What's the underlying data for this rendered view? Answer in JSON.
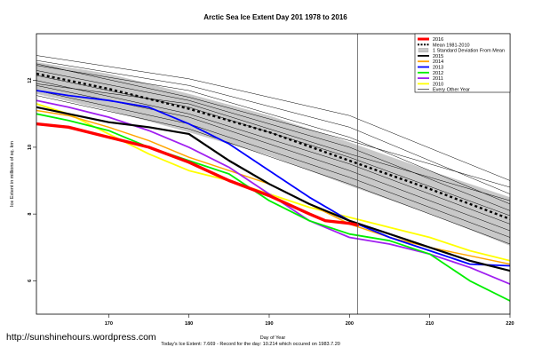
{
  "chart_data": {
    "type": "line",
    "title": "Arctic Sea Ice Extent Day 201 1978 to 2016",
    "xlabel": "Day of Year",
    "ylabel": "Ice Extent in millions of sq. km",
    "xlim": [
      161,
      220
    ],
    "ylim": [
      5.0,
      13.4
    ],
    "x_ticks": [
      170,
      180,
      190,
      200,
      210,
      220
    ],
    "y_ticks": [
      6,
      8,
      10,
      12
    ],
    "vline_x": 201,
    "grid": false,
    "legend_position": "top-right",
    "footer": "Today's Ice Extent: 7.669 - Record for the day: 10.214 which occured on 1983.7.20",
    "credit": "http://sunshinehours.wordpress.com",
    "legend": [
      {
        "label": "2016",
        "color": "#ff0000",
        "style": "thick"
      },
      {
        "label": "Mean 1981-2010",
        "color": "#000000",
        "style": "dashed"
      },
      {
        "label": "1 Standard Deviation From Mean",
        "color": "#c8c8c8",
        "style": "band"
      },
      {
        "label": "2015",
        "color": "#000000",
        "style": "line"
      },
      {
        "label": "2014",
        "color": "#ffa500",
        "style": "line"
      },
      {
        "label": "2013",
        "color": "#0000ff",
        "style": "line"
      },
      {
        "label": "2012",
        "color": "#00ee00",
        "style": "line"
      },
      {
        "label": "2011",
        "color": "#a020f0",
        "style": "line"
      },
      {
        "label": "2010",
        "color": "#ffff00",
        "style": "line"
      },
      {
        "label": "Every Other Year",
        "color": "#000000",
        "style": "thin"
      }
    ],
    "mean": {
      "x": [
        161,
        170,
        180,
        190,
        200,
        210,
        220
      ],
      "y": [
        12.2,
        11.75,
        11.15,
        10.45,
        9.6,
        8.75,
        7.85
      ]
    },
    "std_band": {
      "x": [
        161,
        170,
        180,
        190,
        200,
        210,
        220
      ],
      "upper": [
        12.55,
        12.2,
        11.6,
        10.95,
        10.15,
        9.3,
        8.5
      ],
      "lower": [
        11.6,
        11.1,
        10.45,
        9.75,
        8.85,
        8.0,
        7.05
      ]
    },
    "series": [
      {
        "name": "2016",
        "color": "#ff0000",
        "width": 3.4,
        "x": [
          161,
          165,
          170,
          175,
          180,
          185,
          190,
          195,
          197,
          200,
          201
        ],
        "y": [
          10.7,
          10.6,
          10.3,
          10.0,
          9.55,
          9.0,
          8.55,
          8.0,
          7.8,
          7.72,
          7.669
        ]
      },
      {
        "name": "2015",
        "color": "#000000",
        "width": 2.2,
        "x": [
          161,
          165,
          170,
          175,
          180,
          185,
          190,
          195,
          200,
          205,
          210,
          215,
          220
        ],
        "y": [
          11.2,
          11.0,
          10.75,
          10.6,
          10.4,
          9.6,
          8.9,
          8.3,
          7.8,
          7.4,
          7.0,
          6.6,
          6.3
        ]
      },
      {
        "name": "2014",
        "color": "#ffa500",
        "width": 1.5,
        "x": [
          161,
          165,
          170,
          175,
          180,
          185,
          190,
          195,
          200,
          205,
          210,
          215,
          220
        ],
        "y": [
          11.1,
          10.95,
          10.6,
          10.2,
          9.7,
          9.3,
          8.9,
          8.3,
          7.7,
          7.3,
          7.0,
          6.75,
          6.5
        ]
      },
      {
        "name": "2013",
        "color": "#0000ff",
        "width": 1.8,
        "x": [
          161,
          165,
          170,
          175,
          180,
          185,
          190,
          195,
          200,
          205,
          210,
          215,
          220
        ],
        "y": [
          11.7,
          11.55,
          11.4,
          11.2,
          10.7,
          10.1,
          9.3,
          8.5,
          7.8,
          7.3,
          6.9,
          6.5,
          6.45
        ]
      },
      {
        "name": "2012",
        "color": "#00ee00",
        "width": 1.8,
        "x": [
          161,
          165,
          170,
          175,
          180,
          185,
          190,
          195,
          200,
          205,
          210,
          215,
          220
        ],
        "y": [
          11.0,
          10.8,
          10.5,
          10.0,
          9.6,
          9.2,
          8.4,
          7.8,
          7.4,
          7.2,
          6.8,
          6.0,
          5.4
        ]
      },
      {
        "name": "2011",
        "color": "#a020f0",
        "width": 1.8,
        "x": [
          161,
          165,
          170,
          175,
          180,
          185,
          190,
          195,
          200,
          205,
          210,
          215,
          220
        ],
        "y": [
          11.4,
          11.2,
          10.9,
          10.5,
          10.0,
          9.4,
          8.6,
          7.8,
          7.3,
          7.1,
          6.8,
          6.4,
          5.9
        ]
      },
      {
        "name": "2010",
        "color": "#ffff00",
        "width": 1.8,
        "x": [
          161,
          165,
          170,
          175,
          180,
          185,
          190,
          195,
          200,
          205,
          210,
          215,
          220
        ],
        "y": [
          11.3,
          11.0,
          10.4,
          9.8,
          9.3,
          9.0,
          8.6,
          8.2,
          7.9,
          7.6,
          7.3,
          6.9,
          6.6
        ]
      },
      {
        "name": "Every Other Year",
        "color": "#000000",
        "width": 0.5,
        "x": [
          161,
          180,
          200,
          220
        ],
        "y": [
          12.75,
          12.05,
          10.95,
          9.0
        ]
      },
      {
        "name": "Every Other Year",
        "color": "#000000",
        "width": 0.5,
        "x": [
          161,
          180,
          200,
          220
        ],
        "y": [
          12.6,
          11.85,
          10.6,
          8.6
        ]
      },
      {
        "name": "Every Other Year",
        "color": "#000000",
        "width": 0.5,
        "x": [
          161,
          180,
          200,
          220
        ],
        "y": [
          12.45,
          11.7,
          10.3,
          8.3
        ]
      },
      {
        "name": "Every Other Year",
        "color": "#000000",
        "width": 0.5,
        "x": [
          161,
          180,
          200,
          220
        ],
        "y": [
          12.3,
          11.4,
          10.0,
          8.1
        ]
      },
      {
        "name": "Every Other Year",
        "color": "#000000",
        "width": 0.5,
        "x": [
          161,
          180,
          200,
          220
        ],
        "y": [
          12.15,
          11.2,
          9.7,
          7.95
        ]
      },
      {
        "name": "Every Other Year",
        "color": "#000000",
        "width": 0.5,
        "x": [
          161,
          180,
          200,
          220
        ],
        "y": [
          12.0,
          11.0,
          9.5,
          7.7
        ]
      },
      {
        "name": "Every Other Year",
        "color": "#000000",
        "width": 0.5,
        "x": [
          161,
          180,
          200,
          220
        ],
        "y": [
          11.85,
          10.9,
          9.3,
          7.5
        ]
      },
      {
        "name": "Every Other Year",
        "color": "#000000",
        "width": 0.5,
        "x": [
          161,
          180,
          200,
          220
        ],
        "y": [
          11.7,
          10.7,
          9.1,
          7.3
        ]
      },
      {
        "name": "Every Other Year",
        "color": "#000000",
        "width": 0.5,
        "x": [
          161,
          180,
          200,
          220
        ],
        "y": [
          11.55,
          10.55,
          8.9,
          7.1
        ]
      },
      {
        "name": "Every Other Year",
        "color": "#000000",
        "width": 0.5,
        "x": [
          161,
          180,
          200,
          220
        ],
        "y": [
          11.9,
          11.3,
          9.8,
          8.4
        ]
      },
      {
        "name": "Every Other Year",
        "color": "#000000",
        "width": 0.5,
        "x": [
          161,
          180,
          200,
          220
        ],
        "y": [
          12.5,
          11.5,
          10.2,
          8.8
        ]
      }
    ]
  }
}
